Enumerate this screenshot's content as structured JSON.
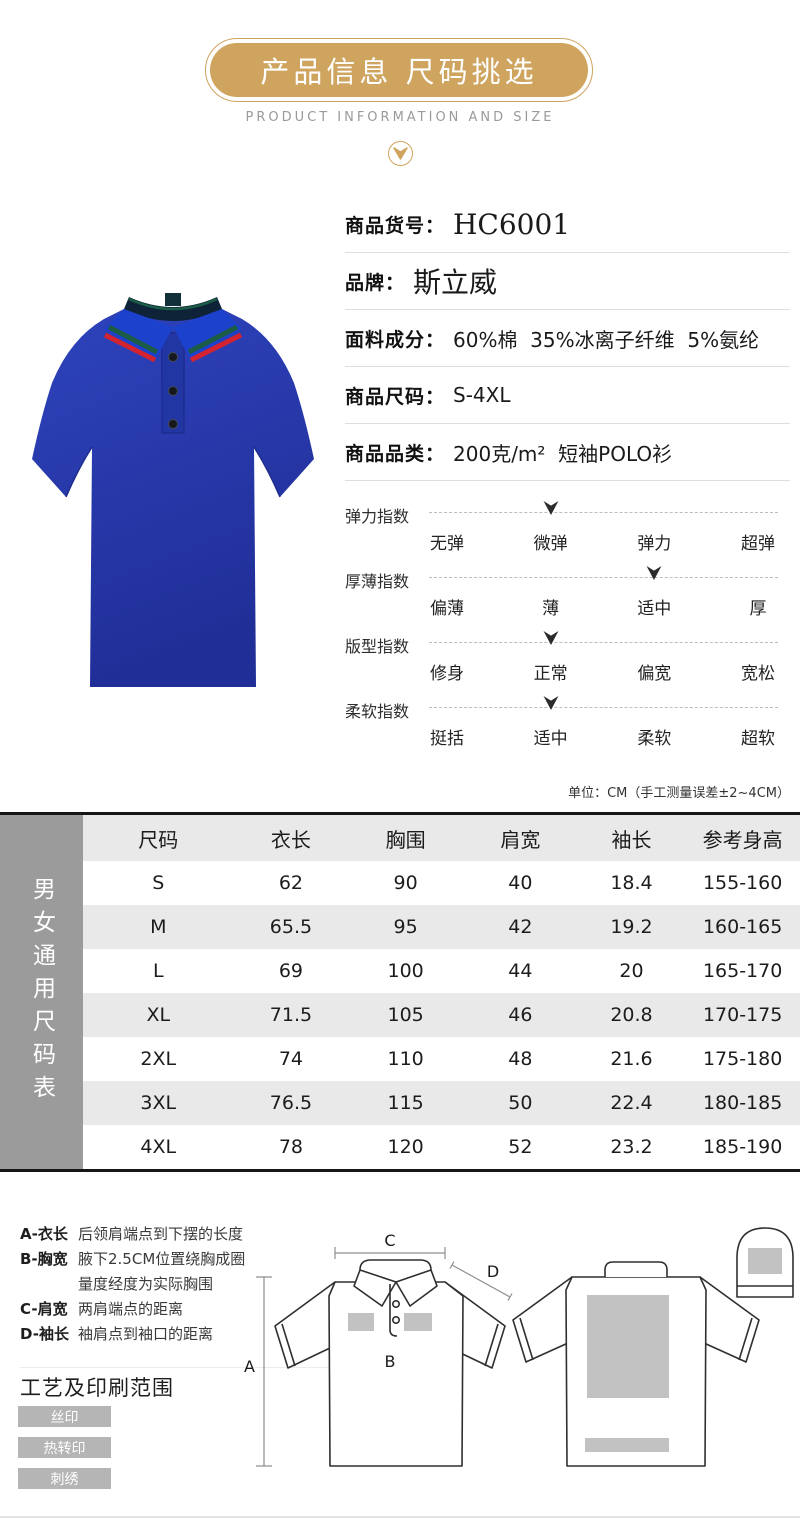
{
  "header": {
    "title": "产品信息 尺码挑选",
    "subtitle": "PRODUCT INFORMATION AND SIZE"
  },
  "colors": {
    "gold": "#CFA45F",
    "polo_body": "#2A3AAD",
    "polo_body_dark": "#22309B",
    "polo_collar": "#1C41CD",
    "collar_stripe_red": "#D32330",
    "collar_stripe_green": "#1A5C45",
    "collar_inner": "#0E2238",
    "print_area_gray": "#C2C2C2"
  },
  "product_info": {
    "rows": [
      {
        "label": "商品货号：",
        "value": "HC6001",
        "serif": true
      },
      {
        "label": "品牌：",
        "value": "斯立威",
        "serif": true
      },
      {
        "label": "面料成分：",
        "value": "60%棉  35%冰离子纤维  5%氨纶",
        "serif": false
      },
      {
        "label": "商品尺码：",
        "value": "S-4XL",
        "serif": false
      },
      {
        "label": "商品品类：",
        "value": "200克/m²  短袖POLO衫",
        "serif": false
      }
    ]
  },
  "indices": {
    "groups": [
      {
        "label": "弹力指数",
        "options": [
          "无弹",
          "微弹",
          "弹力",
          "超弹"
        ],
        "selected": 1
      },
      {
        "label": "厚薄指数",
        "options": [
          "偏薄",
          "薄",
          "适中",
          "厚"
        ],
        "selected": 2
      },
      {
        "label": "版型指数",
        "options": [
          "修身",
          "正常",
          "偏宽",
          "宽松"
        ],
        "selected": 1
      },
      {
        "label": "柔软指数",
        "options": [
          "挺括",
          "适中",
          "柔软",
          "超软"
        ],
        "selected": 1
      }
    ]
  },
  "size_table": {
    "unit_note": "单位：CM（手工测量误差±2~4CM）",
    "side_label": "男女通用尺码表",
    "columns": [
      "尺码",
      "衣长",
      "胸围",
      "肩宽",
      "袖长",
      "参考身高"
    ],
    "rows": [
      [
        "S",
        "62",
        "90",
        "40",
        "18.4",
        "155-160"
      ],
      [
        "M",
        "65.5",
        "95",
        "42",
        "19.2",
        "160-165"
      ],
      [
        "L",
        "69",
        "100",
        "44",
        "20",
        "165-170"
      ],
      [
        "XL",
        "71.5",
        "105",
        "46",
        "20.8",
        "170-175"
      ],
      [
        "2XL",
        "74",
        "110",
        "48",
        "21.6",
        "175-180"
      ],
      [
        "3XL",
        "76.5",
        "115",
        "50",
        "22.4",
        "180-185"
      ],
      [
        "4XL",
        "78",
        "120",
        "52",
        "23.2",
        "185-190"
      ]
    ]
  },
  "measure_guide": {
    "items": [
      {
        "key": "A-衣长",
        "desc": [
          "后领肩端点到下摆的长度"
        ]
      },
      {
        "key": "B-胸宽",
        "desc": [
          "腋下2.5CM位置绕胸成圈",
          "量度经度为实际胸围"
        ]
      },
      {
        "key": "C-肩宽",
        "desc": [
          "两肩端点的距离"
        ]
      },
      {
        "key": "D-袖长",
        "desc": [
          "袖肩点到袖口的距离"
        ]
      }
    ],
    "letters": {
      "a": "A",
      "b": "B",
      "c": "C",
      "d": "D"
    }
  },
  "craft": {
    "title": "工艺及印刷范围",
    "tags": [
      "丝印",
      "热转印",
      "刺绣"
    ]
  }
}
